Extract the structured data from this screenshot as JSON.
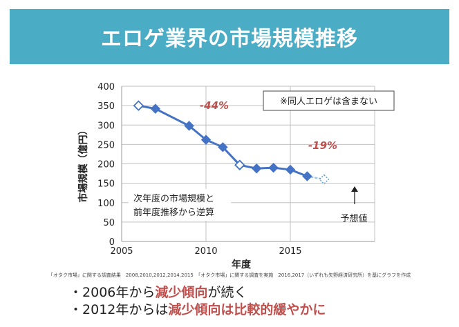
{
  "page": {
    "title": "エロゲ業界の市場規模推移",
    "source": "「オタク市場」に関する調査結果　2008,2010,2012,2014,2015　「オタク市場」に関する調査を実施　2016,2017（いずれも矢野経済研究所）を基にグラフを作成",
    "bullets": [
      {
        "bullet": "・",
        "pre": "2006年から",
        "highlight": "減少傾向",
        "post": "が続く"
      },
      {
        "bullet": "・",
        "pre": "2012年からは",
        "highlight": "減少傾向は比較的緩やかに",
        "post": ""
      }
    ],
    "colors": {
      "banner": "#4bacc6",
      "series": "#4472c4",
      "arrow": "#c0504d",
      "highlight": "#c0504d"
    }
  },
  "chart_data": {
    "type": "line",
    "xlabel": "年度",
    "ylabel": "市場規模（億円）",
    "xlim": [
      2005,
      2020
    ],
    "ylim": [
      0,
      400
    ],
    "xticks": [
      2005,
      2010,
      2015
    ],
    "yticks": [
      0,
      50,
      100,
      150,
      200,
      250,
      300,
      350,
      400
    ],
    "grid": true,
    "series": [
      {
        "points": [
          {
            "x": 2006,
            "y": 350,
            "marker": "hollow"
          },
          {
            "x": 2007,
            "y": 342,
            "marker": "filled"
          },
          {
            "x": 2009,
            "y": 298,
            "marker": "filled"
          },
          {
            "x": 2010,
            "y": 262,
            "marker": "filled"
          },
          {
            "x": 2011,
            "y": 243,
            "marker": "filled"
          },
          {
            "x": 2012,
            "y": 197,
            "marker": "hollow"
          },
          {
            "x": 2013,
            "y": 188,
            "marker": "filled"
          },
          {
            "x": 2014,
            "y": 190,
            "marker": "filled"
          },
          {
            "x": 2015,
            "y": 185,
            "marker": "filled"
          },
          {
            "x": 2016,
            "y": 168,
            "marker": "filled"
          },
          {
            "x": 2017,
            "y": 160,
            "marker": "dotted"
          }
        ]
      }
    ],
    "annotations": {
      "note": "※同人エロゲは含まない",
      "arrow1_label": "-44%",
      "arrow2_label": "-19%",
      "reverse_calc_line1": "次年度の市場規模と",
      "reverse_calc_line2": "前年度推移から逆算",
      "forecast": "予想値"
    }
  }
}
